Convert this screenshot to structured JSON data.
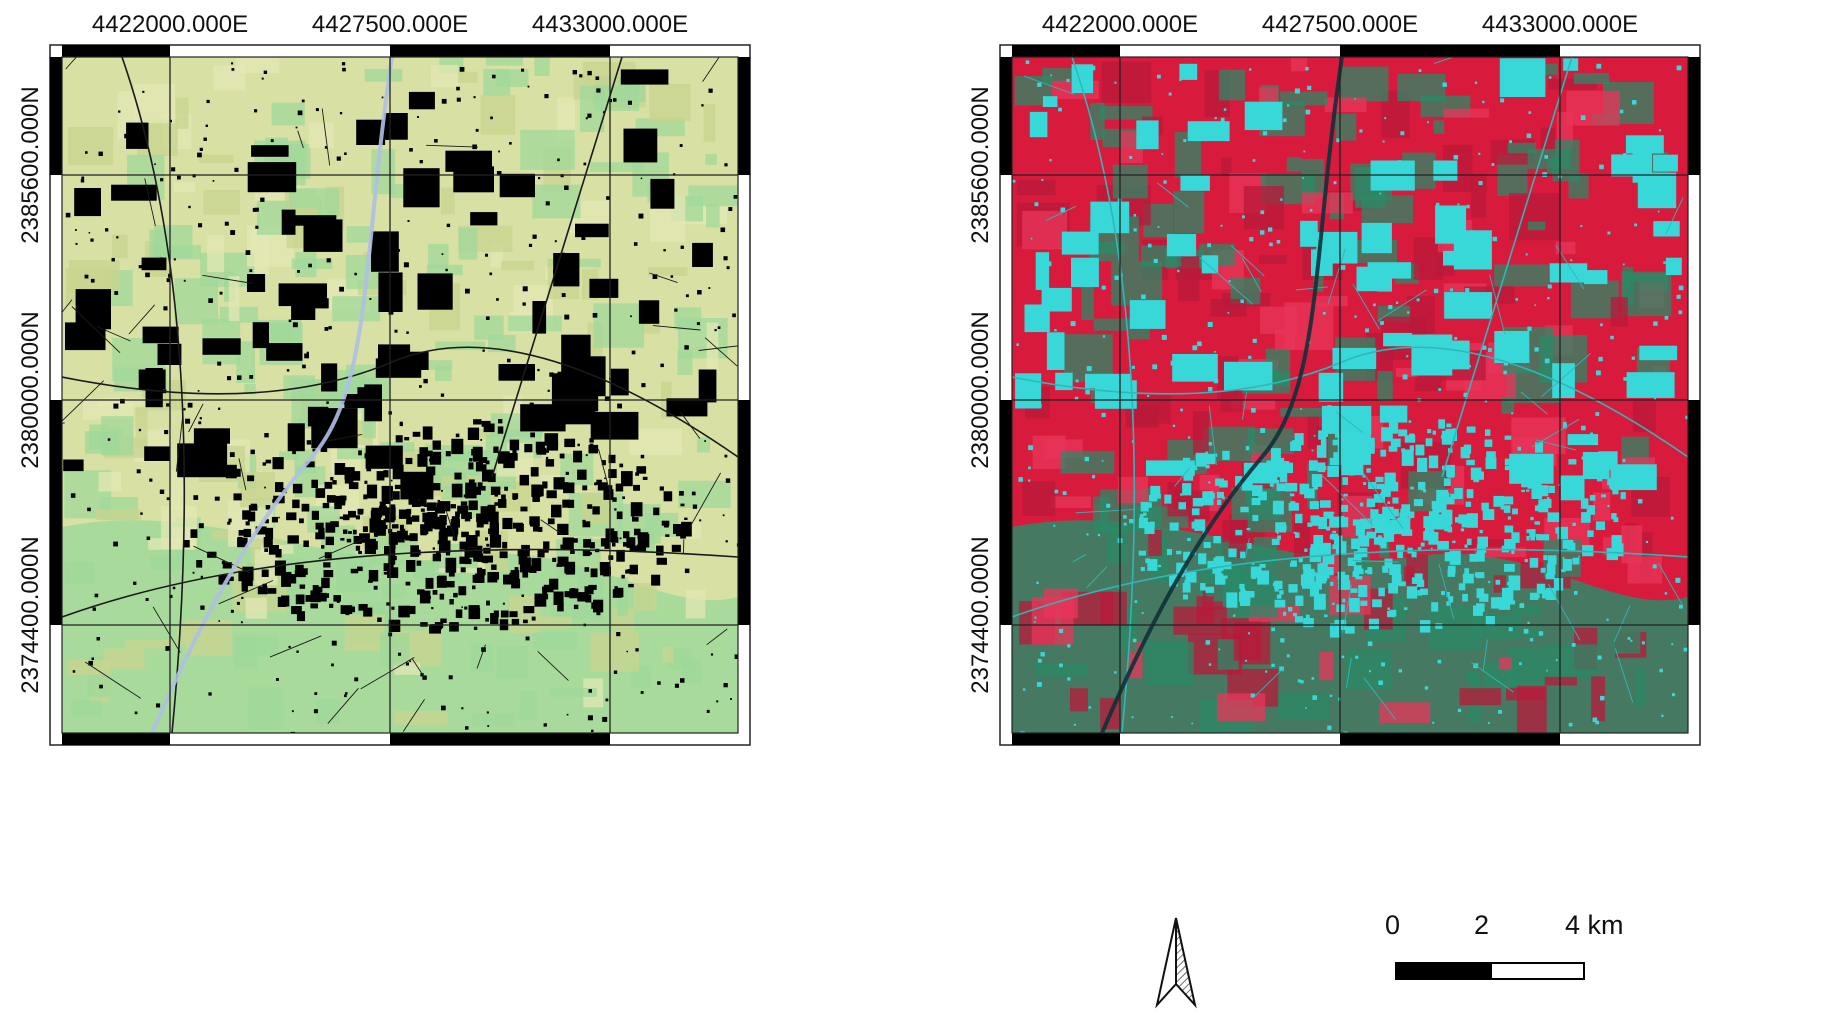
{
  "maps": [
    {
      "id": "left",
      "style": "land-cover",
      "colors": {
        "background": "#d9e0a4",
        "accent": "#9fd89a",
        "built": "#000000",
        "water": "#aebfe6"
      },
      "top_labels": [
        "4422000.000E",
        "4427500.000E",
        "4433000.000E"
      ],
      "side_labels": [
        "2385600.000N",
        "2380000.000N",
        "2374400.000N"
      ]
    },
    {
      "id": "right",
      "style": "false-color-satellite",
      "colors": {
        "background": "#d81b3c",
        "accent": "#2b8a67",
        "built": "#38d8d8",
        "water": "#10313a"
      },
      "top_labels": [
        "4422000.000E",
        "4427500.000E",
        "4433000.000E"
      ],
      "side_labels": [
        "2385600.000N",
        "2380000.000N",
        "2374400.000N"
      ]
    }
  ],
  "north_arrow": {
    "icon": "north-arrow-icon"
  },
  "scale_bar": {
    "labels": [
      "0",
      "2",
      "4 km"
    ]
  }
}
